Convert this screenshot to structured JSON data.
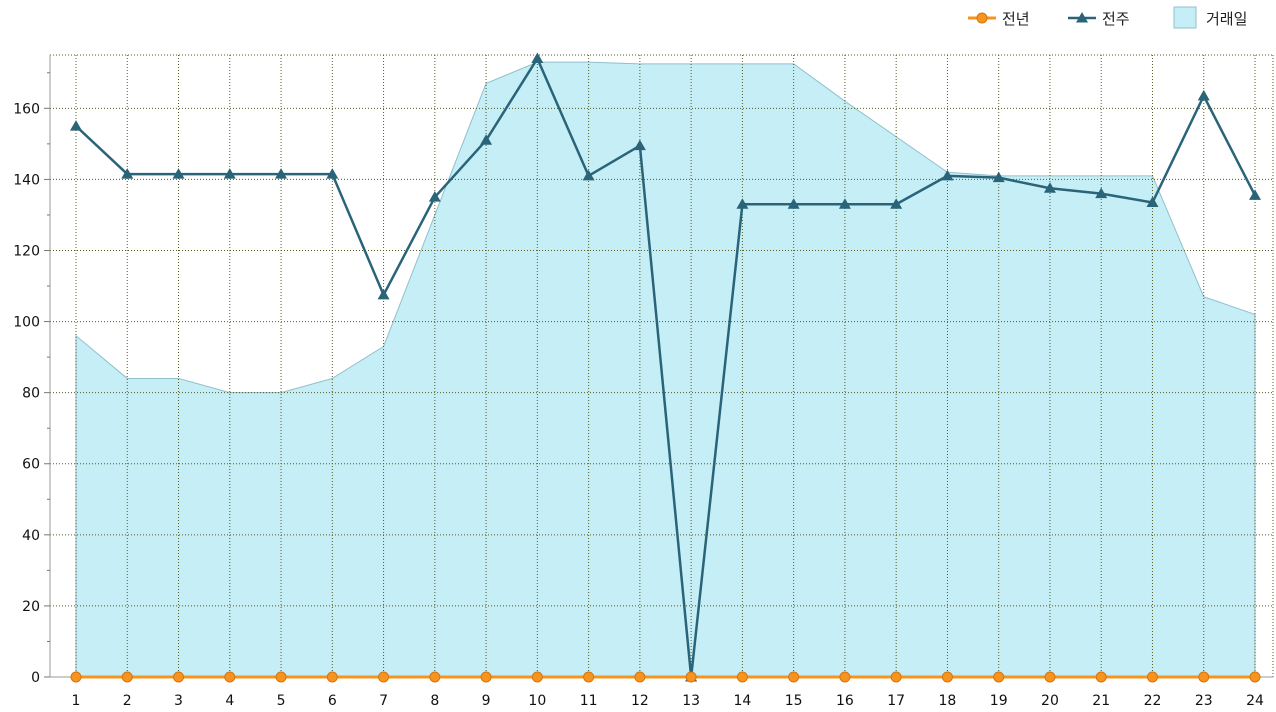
{
  "chart_data": {
    "type": "line",
    "title": "",
    "xlabel": "",
    "ylabel": "",
    "ylim": [
      0,
      175
    ],
    "y_ticks": [
      0,
      20,
      40,
      60,
      80,
      100,
      120,
      140,
      160
    ],
    "grid": true,
    "legend_position": "top-right",
    "categories": [
      "1",
      "2",
      "3",
      "4",
      "5",
      "6",
      "7",
      "8",
      "9",
      "10",
      "11",
      "12",
      "13",
      "14",
      "15",
      "16",
      "17",
      "18",
      "19",
      "20",
      "21",
      "22",
      "23",
      "24"
    ],
    "series": [
      {
        "name": "전년",
        "kind": "line",
        "marker": "circle",
        "color": "#f7941d",
        "values": [
          0,
          0,
          0,
          0,
          0,
          0,
          0,
          0,
          0,
          0,
          0,
          0,
          0,
          0,
          0,
          0,
          0,
          0,
          0,
          0,
          0,
          0,
          0,
          0
        ]
      },
      {
        "name": "전주",
        "kind": "line",
        "marker": "triangle",
        "color": "#2a6478",
        "values": [
          155,
          141.5,
          141.5,
          141.5,
          141.5,
          141.5,
          107.5,
          135,
          151,
          174,
          141,
          149.5,
          0,
          133,
          133,
          133,
          133,
          141,
          140.5,
          137.5,
          136,
          133.5,
          163.5,
          135.5
        ]
      },
      {
        "name": "거래일",
        "kind": "area",
        "color": "#c6eef7",
        "stroke": "#8fc0cc",
        "values": [
          96,
          84,
          84,
          80,
          80,
          84,
          93,
          130,
          167,
          173,
          173,
          172.5,
          172.5,
          172.5,
          172.5,
          162,
          152,
          142,
          141,
          141,
          141,
          141,
          107,
          102
        ]
      }
    ]
  }
}
